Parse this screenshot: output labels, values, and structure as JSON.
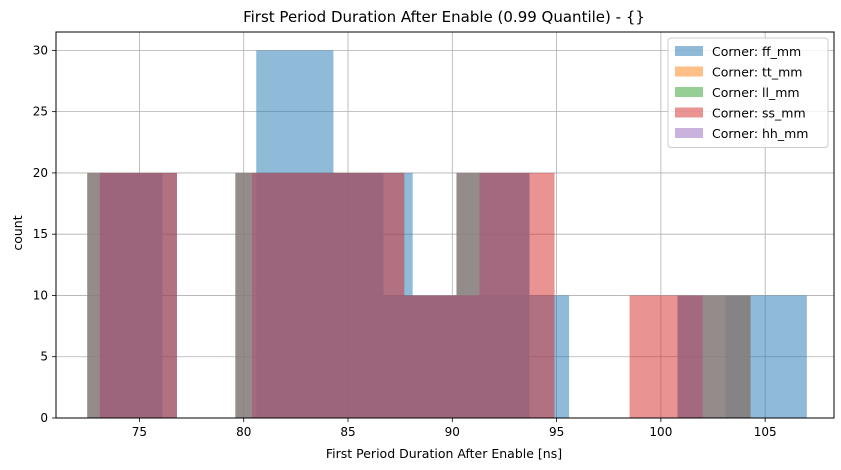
{
  "chart_data": {
    "type": "bar",
    "title": "First Period Duration After Enable (0.99 Quantile) - {}",
    "xlabel": "First Period Duration After Enable [ns]",
    "ylabel": "count",
    "xlim": [
      71.0,
      108.3
    ],
    "ylim": [
      0,
      31.5
    ],
    "xticks": [
      75,
      80,
      85,
      90,
      95,
      100,
      105
    ],
    "yticks": [
      0,
      5,
      10,
      15,
      20,
      25,
      30
    ],
    "grid": true,
    "legend_position": "top-right",
    "series": [
      {
        "name": "Corner: ff_mm",
        "color": "#1f77b4",
        "bins": [
          {
            "x0": 73.1,
            "x1": 76.8,
            "count": 20
          },
          {
            "x0": 76.8,
            "x1": 80.6,
            "count": 0
          },
          {
            "x0": 80.6,
            "x1": 84.3,
            "count": 30
          },
          {
            "x0": 84.3,
            "x1": 88.1,
            "count": 20
          },
          {
            "x0": 88.1,
            "x1": 91.8,
            "count": 10
          },
          {
            "x0": 91.8,
            "x1": 95.6,
            "count": 10
          },
          {
            "x0": 95.6,
            "x1": 99.3,
            "count": 0
          },
          {
            "x0": 99.3,
            "x1": 103.1,
            "count": 0
          },
          {
            "x0": 103.1,
            "x1": 107.0,
            "count": 10
          }
        ]
      },
      {
        "name": "Corner: tt_mm",
        "color": "#ff7f0e",
        "bins": [
          {
            "x0": 72.5,
            "x1": 76.1,
            "count": 20
          },
          {
            "x0": 76.1,
            "x1": 79.6,
            "count": 0
          },
          {
            "x0": 79.6,
            "x1": 83.1,
            "count": 20
          },
          {
            "x0": 83.1,
            "x1": 86.7,
            "count": 20
          },
          {
            "x0": 86.7,
            "x1": 90.2,
            "count": 10
          },
          {
            "x0": 90.2,
            "x1": 93.7,
            "count": 20
          },
          {
            "x0": 93.7,
            "x1": 97.3,
            "count": 0
          },
          {
            "x0": 97.3,
            "x1": 100.8,
            "count": 0
          },
          {
            "x0": 100.8,
            "x1": 104.3,
            "count": 10
          }
        ]
      },
      {
        "name": "Corner: ll_mm",
        "color": "#2ca02c",
        "bins": [
          {
            "x0": 72.5,
            "x1": 76.1,
            "count": 20
          },
          {
            "x0": 76.1,
            "x1": 79.6,
            "count": 0
          },
          {
            "x0": 79.6,
            "x1": 83.1,
            "count": 20
          },
          {
            "x0": 83.1,
            "x1": 86.7,
            "count": 20
          },
          {
            "x0": 86.7,
            "x1": 90.2,
            "count": 10
          },
          {
            "x0": 90.2,
            "x1": 93.7,
            "count": 20
          },
          {
            "x0": 93.7,
            "x1": 97.3,
            "count": 0
          },
          {
            "x0": 97.3,
            "x1": 100.8,
            "count": 0
          },
          {
            "x0": 100.8,
            "x1": 104.3,
            "count": 10
          }
        ]
      },
      {
        "name": "Corner: ss_mm",
        "color": "#d62728",
        "bins": [
          {
            "x0": 73.1,
            "x1": 76.8,
            "count": 20
          },
          {
            "x0": 76.8,
            "x1": 80.4,
            "count": 0
          },
          {
            "x0": 80.4,
            "x1": 84.1,
            "count": 20
          },
          {
            "x0": 84.1,
            "x1": 87.7,
            "count": 20
          },
          {
            "x0": 87.7,
            "x1": 91.3,
            "count": 10
          },
          {
            "x0": 91.3,
            "x1": 94.9,
            "count": 20
          },
          {
            "x0": 94.9,
            "x1": 98.5,
            "count": 0
          },
          {
            "x0": 98.5,
            "x1": 102.0,
            "count": 10
          },
          {
            "x0": 102.0,
            "x1": 105.6,
            "count": 0
          }
        ]
      },
      {
        "name": "Corner: hh_mm",
        "color": "#9467bd",
        "bins": [
          {
            "x0": 72.5,
            "x1": 76.1,
            "count": 20
          },
          {
            "x0": 76.1,
            "x1": 79.6,
            "count": 0
          },
          {
            "x0": 79.6,
            "x1": 83.1,
            "count": 20
          },
          {
            "x0": 83.1,
            "x1": 86.7,
            "count": 20
          },
          {
            "x0": 86.7,
            "x1": 90.2,
            "count": 10
          },
          {
            "x0": 90.2,
            "x1": 93.7,
            "count": 20
          },
          {
            "x0": 93.7,
            "x1": 97.3,
            "count": 0
          },
          {
            "x0": 97.3,
            "x1": 100.8,
            "count": 0
          },
          {
            "x0": 100.8,
            "x1": 104.3,
            "count": 10
          }
        ]
      }
    ]
  }
}
